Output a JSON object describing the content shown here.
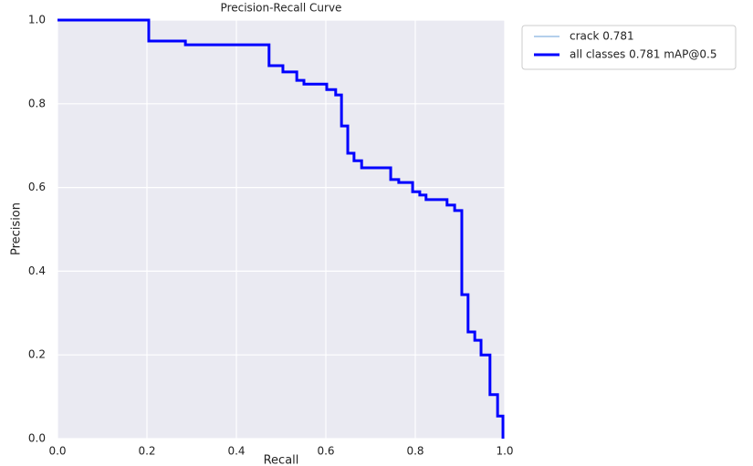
{
  "chart_data": {
    "type": "line",
    "title": "Precision-Recall Curve",
    "x_label": "Recall",
    "y_label": "Precision",
    "x": [
      0,
      0.204,
      0.204,
      0.286,
      0.286,
      0.473,
      0.473,
      0.504,
      0.504,
      0.535,
      0.535,
      0.551,
      0.551,
      0.602,
      0.602,
      0.622,
      0.622,
      0.635,
      0.635,
      0.649,
      0.649,
      0.663,
      0.663,
      0.68,
      0.68,
      0.745,
      0.745,
      0.763,
      0.763,
      0.794,
      0.794,
      0.81,
      0.81,
      0.824,
      0.824,
      0.871,
      0.871,
      0.888,
      0.888,
      0.904,
      0.904,
      0.918,
      0.918,
      0.933,
      0.933,
      0.947,
      0.947,
      0.967,
      0.967,
      0.984,
      0.984,
      0.996,
      0.996
    ],
    "series": [
      {
        "name": "crack 0.781",
        "color": "#6a9fd8",
        "width": 1,
        "values": [
          1,
          1,
          0.95,
          0.95,
          0.941,
          0.941,
          0.891,
          0.891,
          0.876,
          0.876,
          0.856,
          0.856,
          0.847,
          0.847,
          0.834,
          0.834,
          0.821,
          0.821,
          0.747,
          0.747,
          0.682,
          0.682,
          0.664,
          0.664,
          0.647,
          0.647,
          0.619,
          0.619,
          0.612,
          0.612,
          0.59,
          0.59,
          0.582,
          0.582,
          0.571,
          0.571,
          0.558,
          0.558,
          0.545,
          0.545,
          0.344,
          0.344,
          0.255,
          0.255,
          0.235,
          0.235,
          0.2,
          0.2,
          0.105,
          0.105,
          0.054,
          0.054,
          0
        ]
      },
      {
        "name": "all classes 0.781 mAP@0.5",
        "color": "#0000ff",
        "width": 3,
        "values": [
          1,
          1,
          0.95,
          0.95,
          0.941,
          0.941,
          0.891,
          0.891,
          0.876,
          0.876,
          0.856,
          0.856,
          0.847,
          0.847,
          0.834,
          0.834,
          0.821,
          0.821,
          0.747,
          0.747,
          0.682,
          0.682,
          0.664,
          0.664,
          0.647,
          0.647,
          0.619,
          0.619,
          0.612,
          0.612,
          0.59,
          0.59,
          0.582,
          0.582,
          0.571,
          0.571,
          0.558,
          0.558,
          0.545,
          0.545,
          0.344,
          0.344,
          0.255,
          0.255,
          0.235,
          0.235,
          0.2,
          0.2,
          0.105,
          0.105,
          0.054,
          0.054,
          0
        ]
      }
    ],
    "xlim": [
      0,
      1
    ],
    "ylim": [
      0,
      1
    ],
    "xticks": [
      {
        "value": 0,
        "label": "0.0"
      },
      {
        "value": 0.2,
        "label": "0.2"
      },
      {
        "value": 0.4,
        "label": "0.4"
      },
      {
        "value": 0.6,
        "label": "0.6"
      },
      {
        "value": 0.8,
        "label": "0.8"
      },
      {
        "value": 1,
        "label": "1.0"
      }
    ],
    "yticks": [
      {
        "value": 0,
        "label": "0.0"
      },
      {
        "value": 0.2,
        "label": "0.2"
      },
      {
        "value": 0.4,
        "label": "0.4"
      },
      {
        "value": 0.6,
        "label": "0.6"
      },
      {
        "value": 0.8,
        "label": "0.8"
      },
      {
        "value": 1,
        "label": "1.0"
      }
    ],
    "grid": true,
    "legend": "outside-upper-right"
  }
}
